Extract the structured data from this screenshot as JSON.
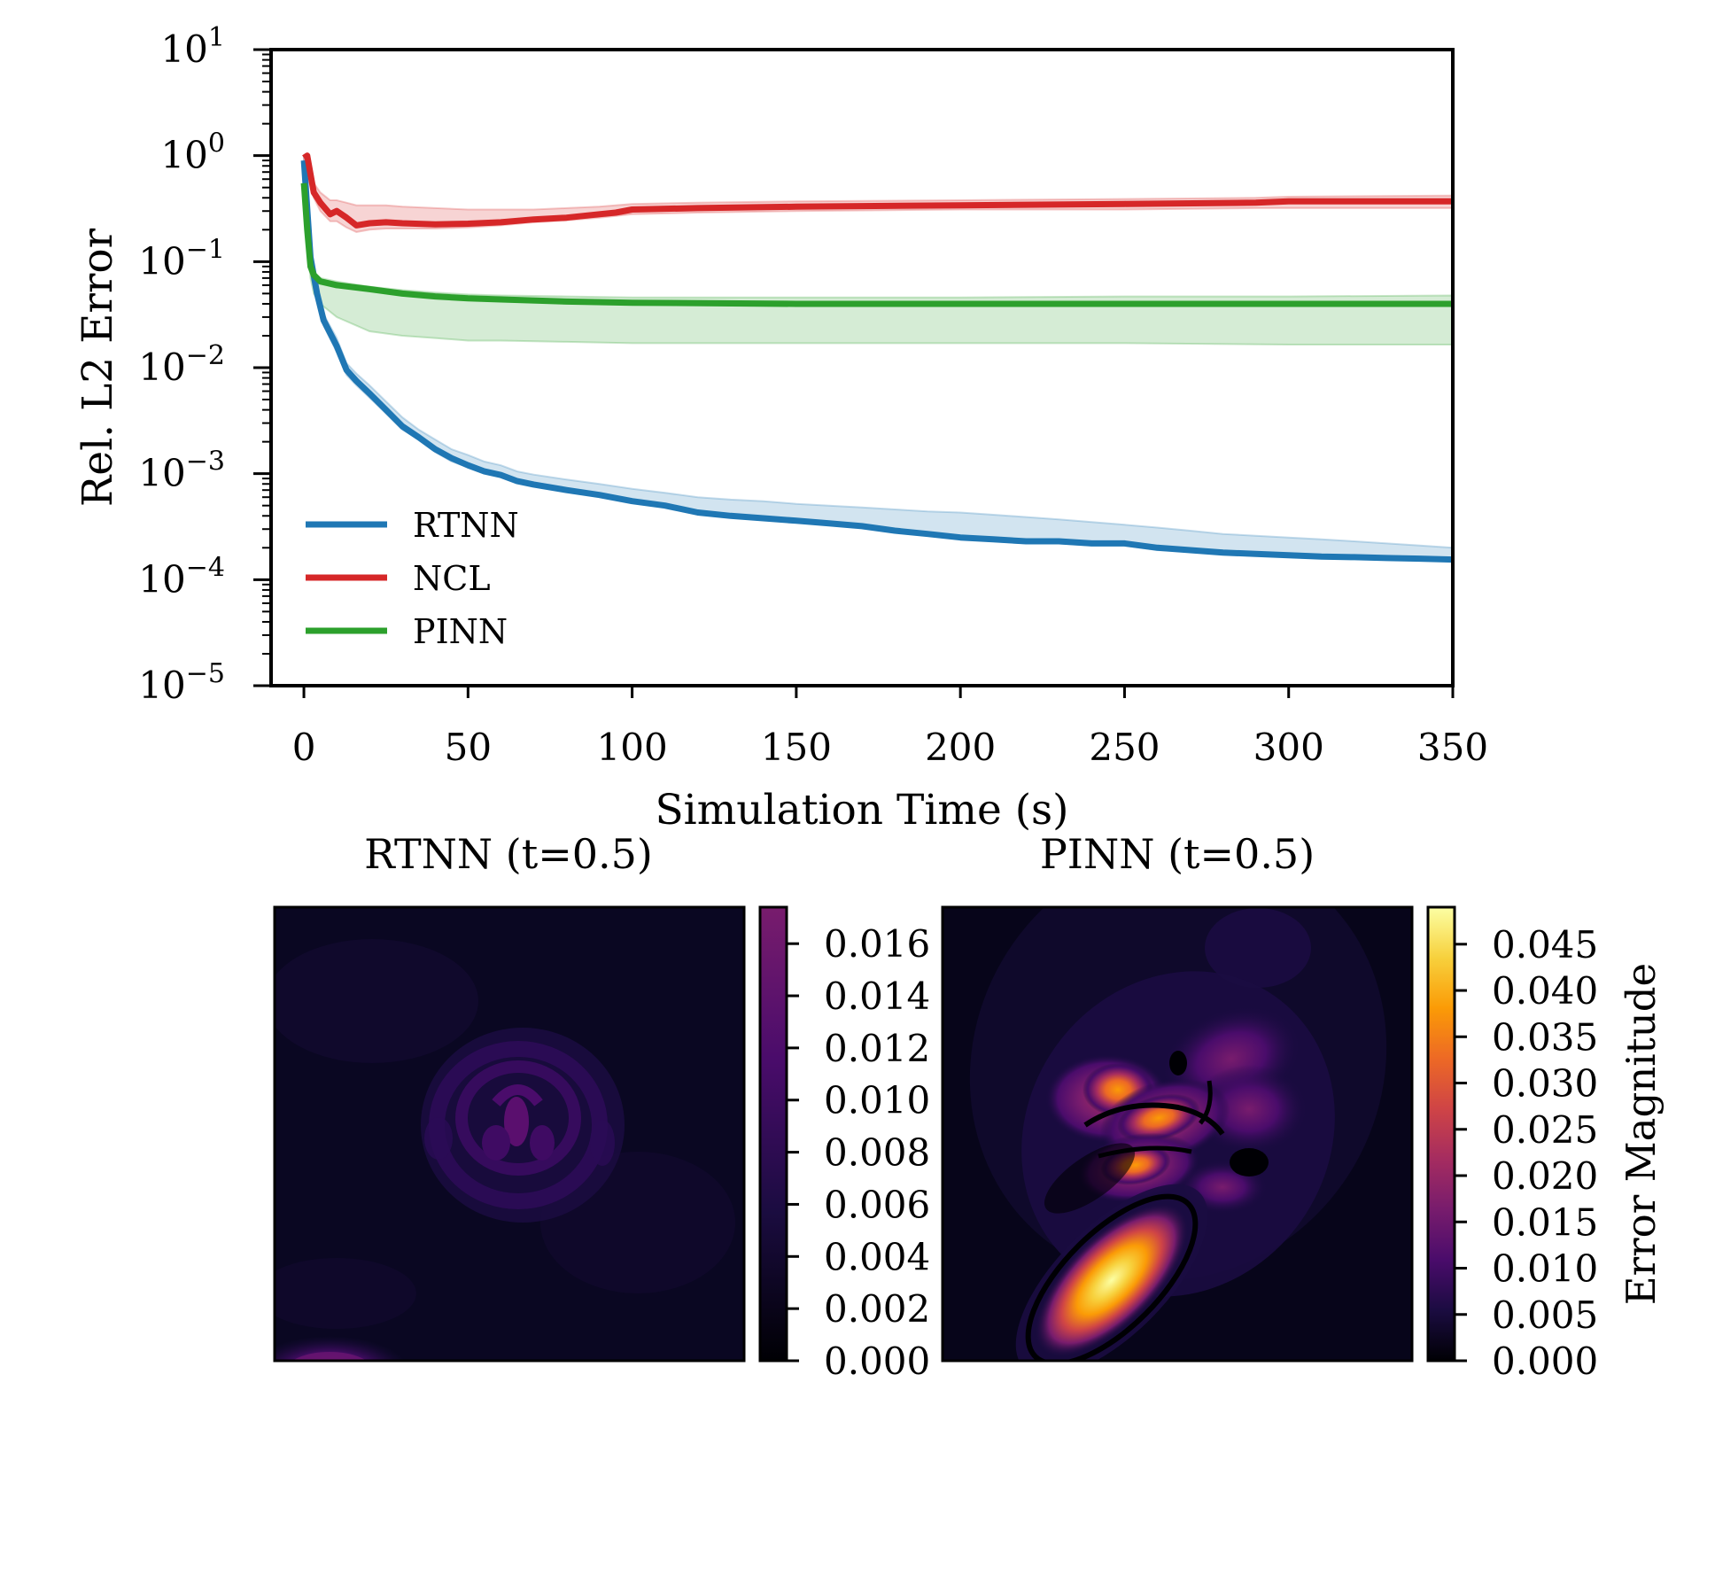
{
  "chart_data": [
    {
      "type": "line",
      "title": "",
      "xlabel": "Simulation Time (s)",
      "ylabel": "Rel. L2 Error",
      "xlim": [
        -10,
        350
      ],
      "ylim": [
        1e-05,
        10
      ],
      "yscale": "log",
      "grid": false,
      "legend_position": "bottom-left",
      "x_ticks": [
        "0",
        "50",
        "100",
        "150",
        "200",
        "250",
        "300",
        "350"
      ],
      "x_tick_values": [
        0,
        50,
        100,
        150,
        200,
        250,
        300,
        350
      ],
      "y_tick_values": [
        10,
        1,
        0.1,
        0.01,
        0.001,
        0.0001,
        1e-05
      ],
      "y_ticks": [
        {
          "base": "10",
          "exp": "1"
        },
        {
          "base": "10",
          "exp": "0"
        },
        {
          "base": "10",
          "exp": "−1"
        },
        {
          "base": "10",
          "exp": "−2"
        },
        {
          "base": "10",
          "exp": "−3"
        },
        {
          "base": "10",
          "exp": "−4"
        },
        {
          "base": "10",
          "exp": "−5"
        }
      ],
      "series": [
        {
          "name": "RTNN",
          "color": "#1f77b4",
          "x": [
            0,
            2,
            4,
            6,
            10,
            13,
            16,
            20,
            25,
            30,
            35,
            40,
            45,
            50,
            55,
            60,
            65,
            70,
            80,
            90,
            100,
            110,
            120,
            130,
            140,
            150,
            160,
            170,
            180,
            190,
            200,
            210,
            220,
            230,
            240,
            250,
            260,
            270,
            280,
            290,
            300,
            310,
            320,
            330,
            340,
            350
          ],
          "y": [
            0.9,
            0.11,
            0.05,
            0.028,
            0.016,
            0.0095,
            0.0075,
            0.0057,
            0.004,
            0.0028,
            0.0022,
            0.0017,
            0.0014,
            0.0012,
            0.00105,
            0.00097,
            0.00085,
            0.00079,
            0.0007,
            0.00063,
            0.00055,
            0.0005,
            0.00043,
            0.0004,
            0.00038,
            0.00036,
            0.00034,
            0.00032,
            0.00029,
            0.00027,
            0.00025,
            0.00024,
            0.00023,
            0.00023,
            0.00022,
            0.00022,
            0.0002,
            0.00019,
            0.00018,
            0.000175,
            0.00017,
            0.000165,
            0.000163,
            0.00016,
            0.000158,
            0.000155
          ],
          "band_lower": [
            0.8,
            0.1,
            0.045,
            0.025,
            0.014,
            0.0085,
            0.0068,
            0.0052,
            0.0037,
            0.0026,
            0.0021,
            0.0016,
            0.0013,
            0.00115,
            0.001,
            0.00093,
            0.00082,
            0.00076,
            0.00068,
            0.00061,
            0.00053,
            0.00048,
            0.00042,
            0.00039,
            0.00037,
            0.00035,
            0.00033,
            0.00031,
            0.00028,
            0.00026,
            0.00024,
            0.00023,
            0.00022,
            0.00022,
            0.00021,
            0.00021,
            0.00019,
            0.000185,
            0.000175,
            0.00017,
            0.000165,
            0.00016,
            0.000158,
            0.000155,
            0.000153,
            0.00015
          ],
          "band_upper": [
            1.0,
            0.13,
            0.06,
            0.032,
            0.019,
            0.011,
            0.0088,
            0.0068,
            0.0048,
            0.0034,
            0.0026,
            0.0021,
            0.0017,
            0.0015,
            0.0013,
            0.0012,
            0.00105,
            0.00098,
            0.00088,
            0.0008,
            0.00072,
            0.00066,
            0.0006,
            0.00057,
            0.00055,
            0.00052,
            0.0005,
            0.00048,
            0.00046,
            0.00044,
            0.00043,
            0.00041,
            0.00039,
            0.00037,
            0.00035,
            0.00033,
            0.00031,
            0.00029,
            0.00027,
            0.00026,
            0.00025,
            0.00024,
            0.00023,
            0.00022,
            0.00021,
            0.0002
          ]
        },
        {
          "name": "NCL",
          "color": "#d62728",
          "x": [
            0,
            1,
            3,
            5,
            8,
            10,
            13,
            16,
            20,
            25,
            30,
            40,
            50,
            60,
            70,
            80,
            90,
            95,
            100,
            120,
            150,
            200,
            250,
            290,
            300,
            350
          ],
          "y": [
            0.95,
            1.0,
            0.45,
            0.36,
            0.28,
            0.3,
            0.26,
            0.22,
            0.23,
            0.235,
            0.23,
            0.225,
            0.228,
            0.235,
            0.25,
            0.26,
            0.28,
            0.29,
            0.31,
            0.32,
            0.33,
            0.34,
            0.35,
            0.36,
            0.37,
            0.37
          ],
          "band_lower": [
            0.9,
            0.9,
            0.4,
            0.3,
            0.24,
            0.24,
            0.21,
            0.19,
            0.2,
            0.205,
            0.205,
            0.205,
            0.21,
            0.22,
            0.235,
            0.245,
            0.26,
            0.27,
            0.28,
            0.29,
            0.3,
            0.31,
            0.31,
            0.32,
            0.32,
            0.32
          ],
          "band_upper": [
            1.0,
            1.05,
            0.55,
            0.45,
            0.38,
            0.38,
            0.36,
            0.34,
            0.34,
            0.34,
            0.33,
            0.32,
            0.31,
            0.31,
            0.31,
            0.32,
            0.33,
            0.34,
            0.35,
            0.36,
            0.37,
            0.38,
            0.39,
            0.4,
            0.41,
            0.42
          ]
        },
        {
          "name": "PINN",
          "color": "#2ca02c",
          "x": [
            0,
            1,
            2,
            3,
            5,
            10,
            20,
            30,
            40,
            50,
            60,
            80,
            100,
            150,
            200,
            250,
            300,
            350
          ],
          "y": [
            0.55,
            0.2,
            0.09,
            0.075,
            0.065,
            0.06,
            0.055,
            0.05,
            0.047,
            0.045,
            0.044,
            0.042,
            0.041,
            0.04,
            0.04,
            0.04,
            0.04,
            0.04
          ],
          "band_lower": [
            0.5,
            0.14,
            0.07,
            0.05,
            0.04,
            0.03,
            0.022,
            0.02,
            0.019,
            0.018,
            0.018,
            0.0175,
            0.017,
            0.017,
            0.017,
            0.017,
            0.0165,
            0.0165
          ],
          "band_upper": [
            0.6,
            0.25,
            0.1,
            0.08,
            0.07,
            0.065,
            0.058,
            0.054,
            0.051,
            0.049,
            0.048,
            0.047,
            0.046,
            0.046,
            0.046,
            0.047,
            0.047,
            0.048
          ]
        }
      ]
    },
    {
      "type": "heatmap",
      "title": "RTNN (t=0.5)",
      "colormap": "inferno",
      "colorbar": {
        "vmin": 0,
        "vmax": 0.0174,
        "ticks": [
          "0.000",
          "0.002",
          "0.004",
          "0.006",
          "0.008",
          "0.010",
          "0.012",
          "0.014",
          "0.016"
        ],
        "tick_values": [
          0,
          0.002,
          0.004,
          0.006,
          0.008,
          0.01,
          0.012,
          0.014,
          0.016
        ]
      }
    },
    {
      "type": "heatmap",
      "title": "PINN (t=0.5)",
      "colormap": "inferno",
      "colorbar": {
        "label": "Error Magnitude",
        "vmin": 0,
        "vmax": 0.049,
        "ticks": [
          "0.000",
          "0.005",
          "0.010",
          "0.015",
          "0.020",
          "0.025",
          "0.030",
          "0.035",
          "0.040",
          "0.045"
        ],
        "tick_values": [
          0,
          0.005,
          0.01,
          0.015,
          0.02,
          0.025,
          0.03,
          0.035,
          0.04,
          0.045
        ]
      }
    }
  ],
  "colors": {
    "inferno_stops": [
      "#000004",
      "#1b0c41",
      "#4a0c6b",
      "#781c6d",
      "#a52c60",
      "#cf4446",
      "#ed6925",
      "#fb9b06",
      "#f7d13d",
      "#fcffa4"
    ]
  }
}
